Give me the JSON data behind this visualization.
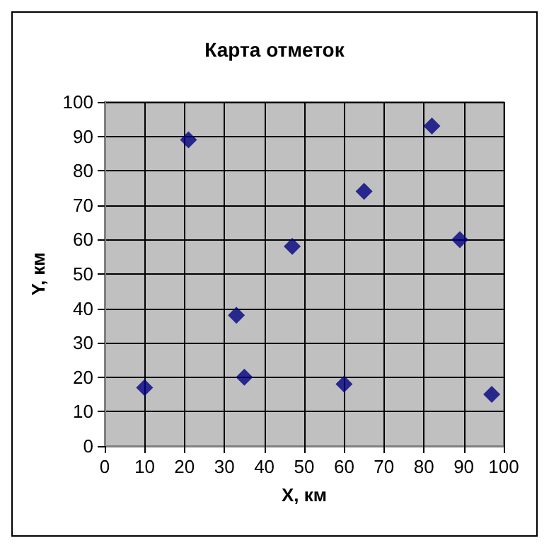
{
  "chart_data": {
    "type": "scatter",
    "title": "Карта отметок",
    "xlabel": "X, км",
    "ylabel": "Y, км",
    "x": [
      10,
      21,
      33,
      35,
      47,
      60,
      65,
      82,
      89,
      97
    ],
    "series": [
      {
        "color": "#000080",
        "values": [
          17,
          89,
          38,
          20,
          58,
          18,
          74,
          93,
          60,
          15
        ]
      }
    ],
    "xlim": [
      0,
      100
    ],
    "xticks": [
      0,
      10,
      20,
      30,
      40,
      50,
      60,
      70,
      80,
      90,
      100
    ],
    "ylim": [
      0,
      100
    ],
    "yticks": [
      0,
      10,
      20,
      30,
      40,
      50,
      60,
      70,
      80,
      90,
      100
    ],
    "grid": true,
    "marker": "diamond"
  }
}
